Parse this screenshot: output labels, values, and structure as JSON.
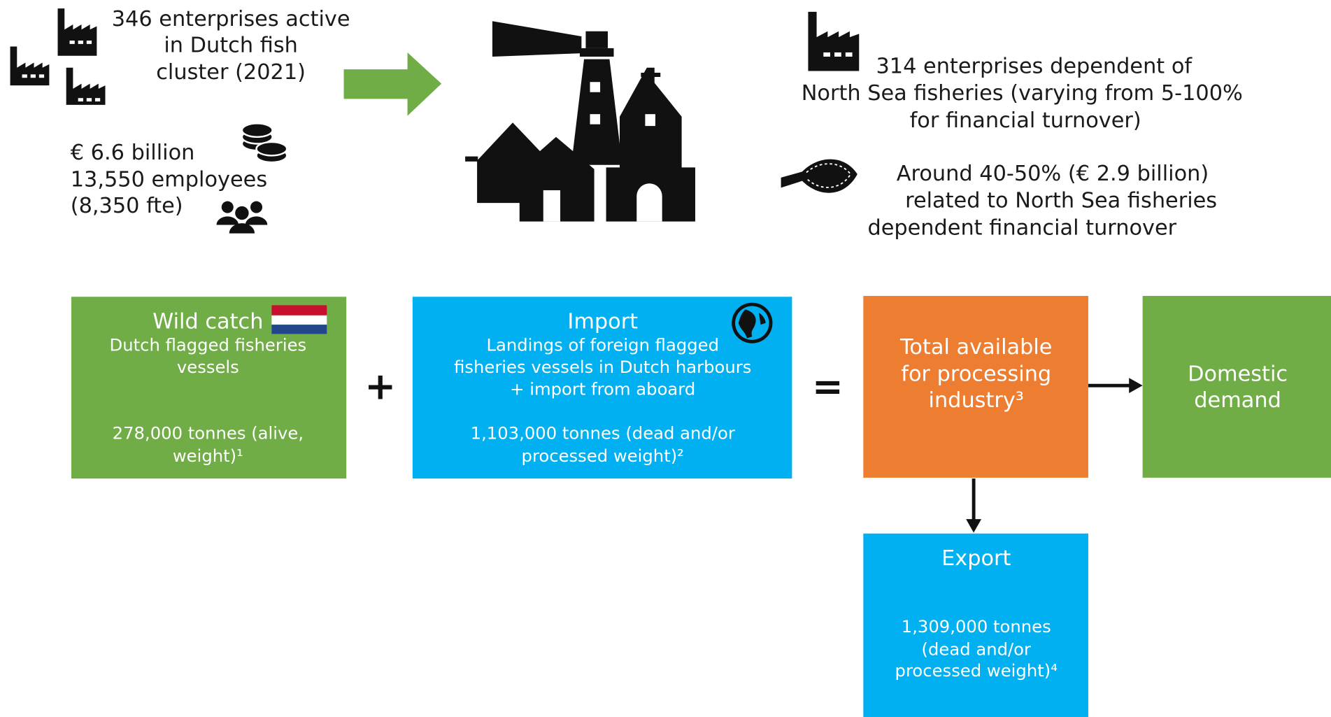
{
  "top_left": {
    "enterprises": [
      "346 enterprises active",
      "in Dutch fish",
      "cluster (2021)"
    ],
    "stats": [
      "€ 6.6 billion",
      "13,550 employees",
      "(8,350 fte)"
    ]
  },
  "top_right": {
    "dependent": [
      "314 enterprises dependent of",
      "North Sea fisheries (varying from 5-100%",
      "for financial turnover)"
    ],
    "turnover": [
      "Around 40-50% (€ 2.9 billion)",
      "related to North Sea fisheries",
      "dependent financial turnover"
    ]
  },
  "boxes": {
    "wild_catch": {
      "title": "Wild catch",
      "subtitle": [
        "Dutch flagged fisheries",
        "vessels"
      ],
      "amount": [
        "278,000 tonnes (alive,",
        "weight)¹"
      ]
    },
    "import": {
      "title": "Import",
      "subtitle": [
        "Landings of foreign flagged",
        "fisheries vessels in Dutch harbours",
        "+ import from aboard"
      ],
      "amount": [
        "1,103,000 tonnes (dead and/or",
        "processed weight)²"
      ]
    },
    "total": {
      "lines": [
        "Total available",
        "for processing",
        "industry³"
      ]
    },
    "domestic": {
      "lines": [
        "Domestic",
        "demand"
      ]
    },
    "export": {
      "title": "Export",
      "amount": [
        "1,309,000 tonnes",
        "(dead and/or",
        "processed weight)⁴"
      ]
    }
  },
  "operators": {
    "plus": "+",
    "equals": "="
  }
}
